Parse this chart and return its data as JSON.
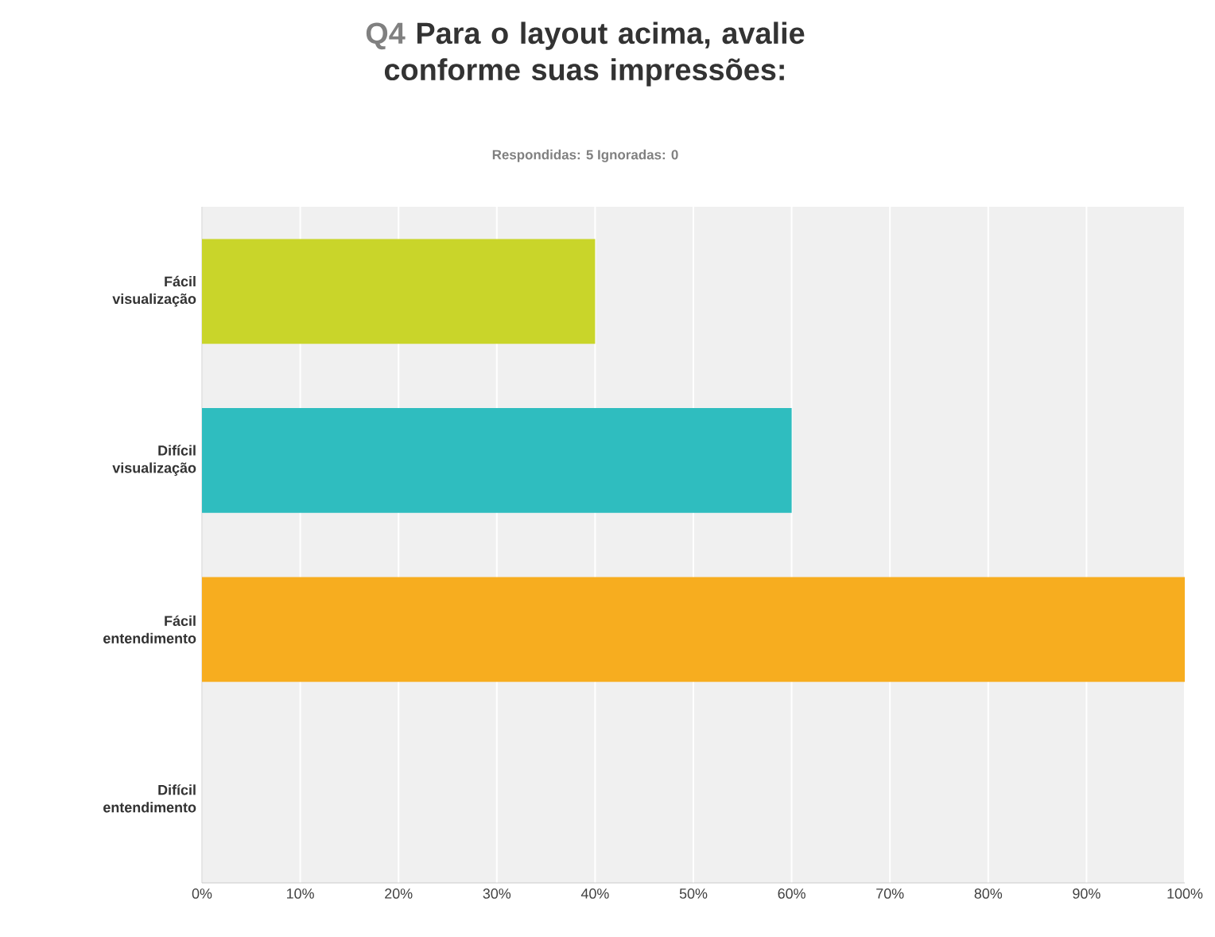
{
  "chart_data": {
    "type": "bar",
    "orientation": "horizontal",
    "title": "Para o layout acima, avalie conforme suas impressões:",
    "subtitle": "Respondidas: 5    Ignoradas: 0",
    "annotations": [
      "Q4"
    ],
    "categories": [
      "Fácil visualização",
      "Difícil visualização",
      "Fácil entendimento",
      "Difícil entendimento"
    ],
    "values": [
      40,
      60,
      100,
      0
    ],
    "colors": [
      "#c9d52a",
      "#2fbdbf",
      "#f7ad1f",
      "#9e9e9e"
    ],
    "xlim": [
      0,
      100
    ],
    "xticks": [
      {
        "value": 0,
        "label": "0%"
      },
      {
        "value": 10,
        "label": "10%"
      },
      {
        "value": 20,
        "label": "20%"
      },
      {
        "value": 30,
        "label": "30%"
      },
      {
        "value": 40,
        "label": "40%"
      },
      {
        "value": 50,
        "label": "50%"
      },
      {
        "value": 60,
        "label": "60%"
      },
      {
        "value": 70,
        "label": "70%"
      },
      {
        "value": 80,
        "label": "80%"
      },
      {
        "value": 90,
        "label": "90%"
      },
      {
        "value": 100,
        "label": "100%"
      }
    ],
    "grid": "x"
  }
}
